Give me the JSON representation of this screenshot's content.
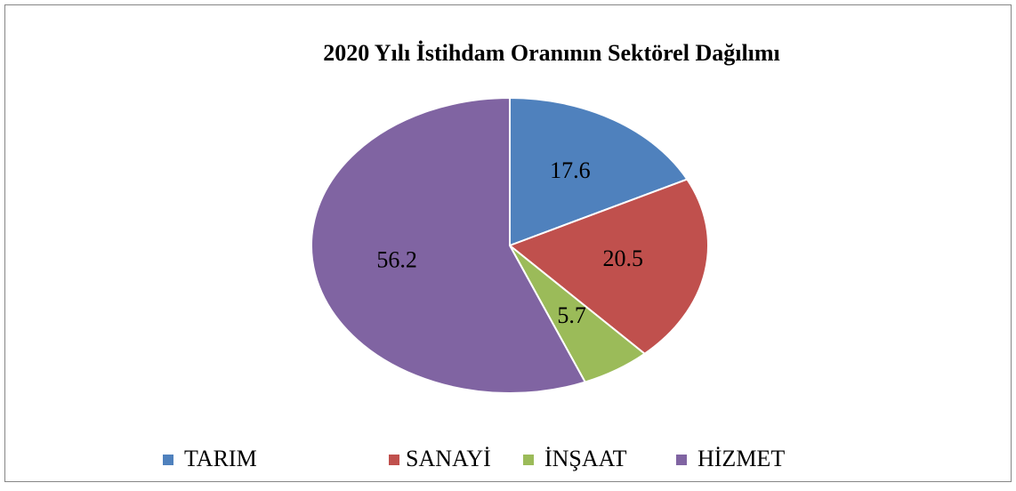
{
  "chart_data": {
    "type": "pie",
    "title": "2020 Yılı İstihdam Oranının Sektörel Dağılımı",
    "categories": [
      "TARIM",
      "SANAYİ",
      "İNŞAAT",
      "HİZMET"
    ],
    "values": [
      17.6,
      20.5,
      5.7,
      56.2
    ],
    "colors": [
      "#4f81bd",
      "#c0504d",
      "#9bbb59",
      "#8064a2"
    ],
    "legend": "bottom"
  }
}
